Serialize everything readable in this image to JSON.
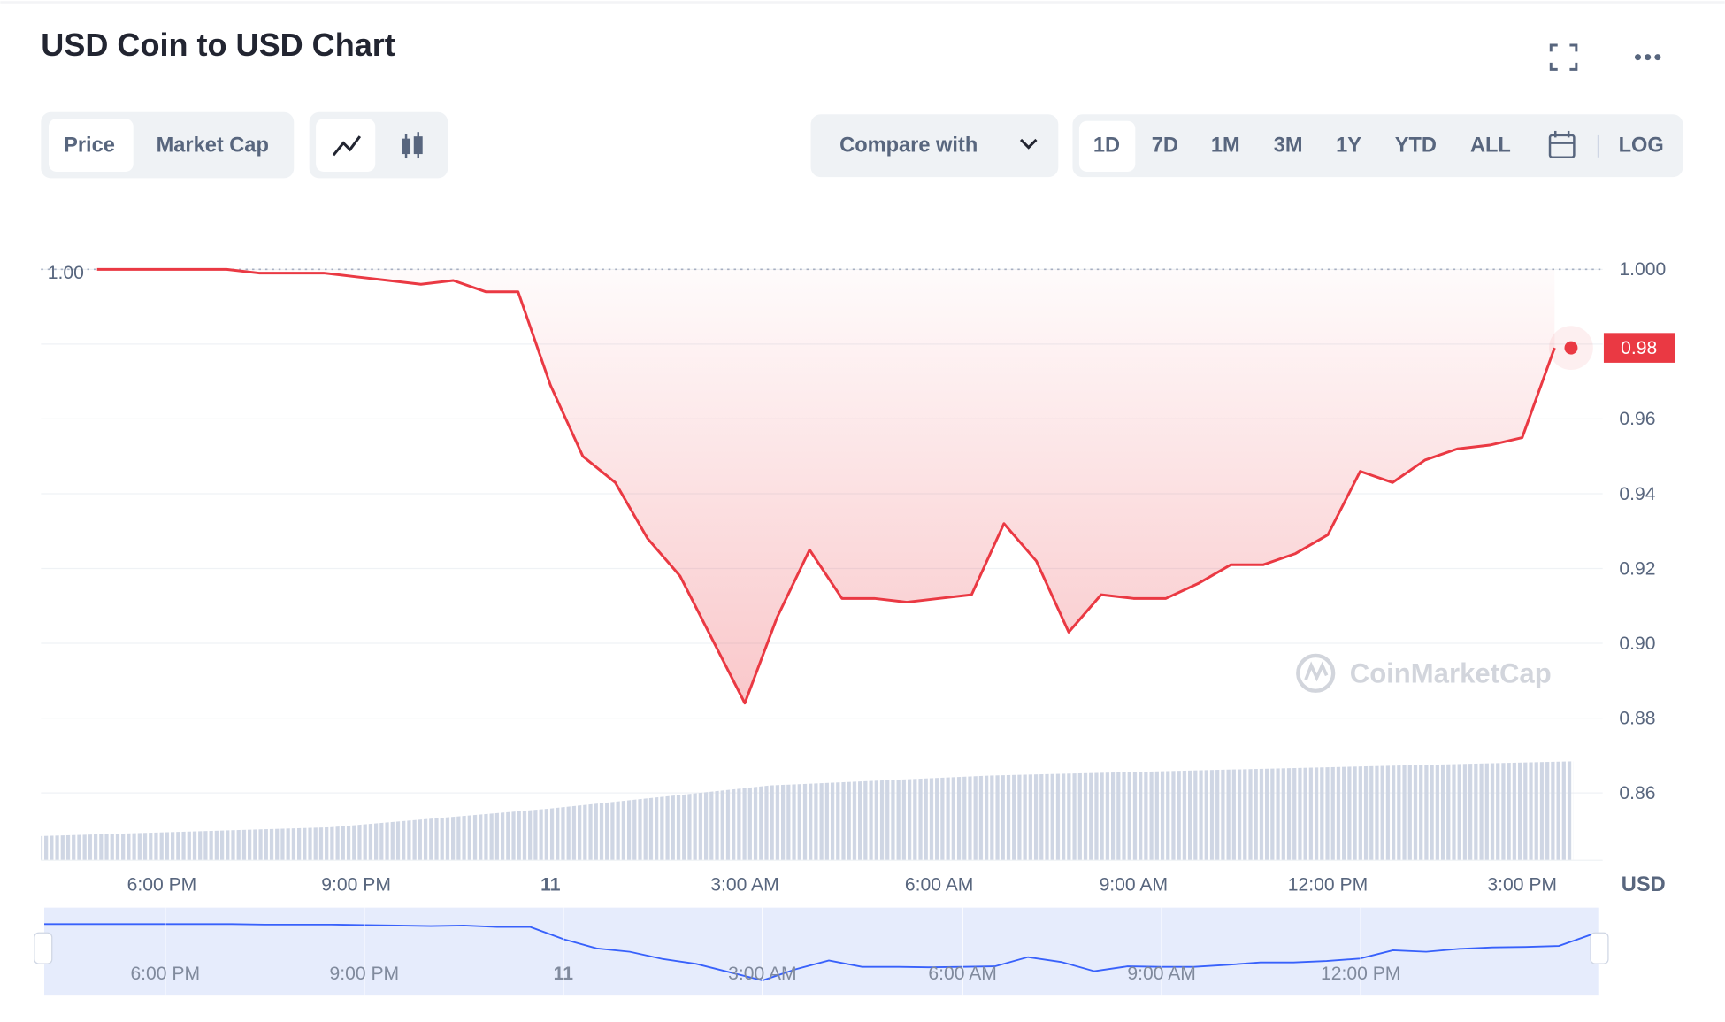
{
  "chart_data": {
    "type": "line",
    "title": "USD Coin to USD Chart",
    "categories": [
      null,
      null,
      "6:00 PM",
      null,
      null,
      null,
      null,
      null,
      "9:00 PM",
      null,
      null,
      null,
      null,
      null,
      "11",
      null,
      null,
      null,
      null,
      null,
      "3:00 AM",
      null,
      null,
      null,
      null,
      null,
      "6:00 AM",
      null,
      null,
      null,
      null,
      null,
      "9:00 AM",
      null,
      null,
      null,
      null,
      null,
      "12:00 PM",
      null,
      null,
      null,
      null,
      null,
      "3:00 PM",
      null
    ],
    "series": [
      {
        "name": "Price",
        "color": "#ea3943",
        "values": [
          1.0,
          1.0,
          1.0,
          1.0,
          1.0,
          0.999,
          0.999,
          0.999,
          0.998,
          0.997,
          0.996,
          0.997,
          0.994,
          0.994,
          0.969,
          0.95,
          0.943,
          0.928,
          0.918,
          0.901,
          0.884,
          0.907,
          0.925,
          0.912,
          0.912,
          0.911,
          0.912,
          0.913,
          0.932,
          0.922,
          0.903,
          0.913,
          0.912,
          0.912,
          0.916,
          0.921,
          0.921,
          0.924,
          0.929,
          0.946,
          0.943,
          0.949,
          0.952,
          0.953,
          0.955,
          0.979
        ]
      }
    ],
    "last_price_label": "0.98",
    "reference_line": {
      "value": 1,
      "label": "1.00"
    },
    "ylim": [
      0.842,
      1.0176
    ],
    "yticks": [
      {
        "value": 1,
        "label": "1.000"
      },
      0.98,
      0.96,
      0.94,
      0.92,
      {
        "value": 0.9,
        "label": "0.90"
      },
      0.88,
      0.86
    ],
    "y_unit": "USD",
    "grid": true,
    "watermark": "CoinMarketCap",
    "navigator_labels": [
      "6:00 PM",
      "9:00 PM",
      "11",
      "3:00 AM",
      "6:00 AM",
      "9:00 AM",
      "12:00 PM"
    ]
  },
  "toolbar": {
    "tabs": [
      "Price",
      "Market Cap"
    ],
    "compare": "Compare with",
    "ranges": [
      "1D",
      "7D",
      "1M",
      "3M",
      "1Y",
      "YTD",
      "ALL"
    ],
    "log": "LOG"
  }
}
